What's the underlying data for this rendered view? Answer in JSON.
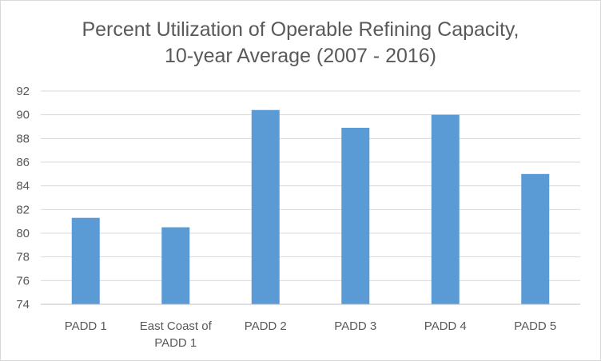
{
  "chart_data": {
    "type": "bar",
    "title_lines": [
      "Percent Utilization of Operable Refining Capacity,",
      "10-year Average (2007 - 2016)"
    ],
    "categories": [
      [
        "PADD 1"
      ],
      [
        "East Coast of",
        "PADD 1"
      ],
      [
        "PADD 2"
      ],
      [
        "PADD 3"
      ],
      [
        "PADD 4"
      ],
      [
        "PADD 5"
      ]
    ],
    "values": [
      81.3,
      80.5,
      90.4,
      88.9,
      90.0,
      85.0
    ],
    "ylim": [
      74,
      92
    ],
    "yticks": [
      "74",
      "76",
      "78",
      "80",
      "82",
      "84",
      "86",
      "88",
      "90",
      "92"
    ],
    "ytick_values": [
      74,
      76,
      78,
      80,
      82,
      84,
      86,
      88,
      90,
      92
    ],
    "grid": true,
    "bar_color": "#5b9bd5",
    "legend": "none"
  }
}
